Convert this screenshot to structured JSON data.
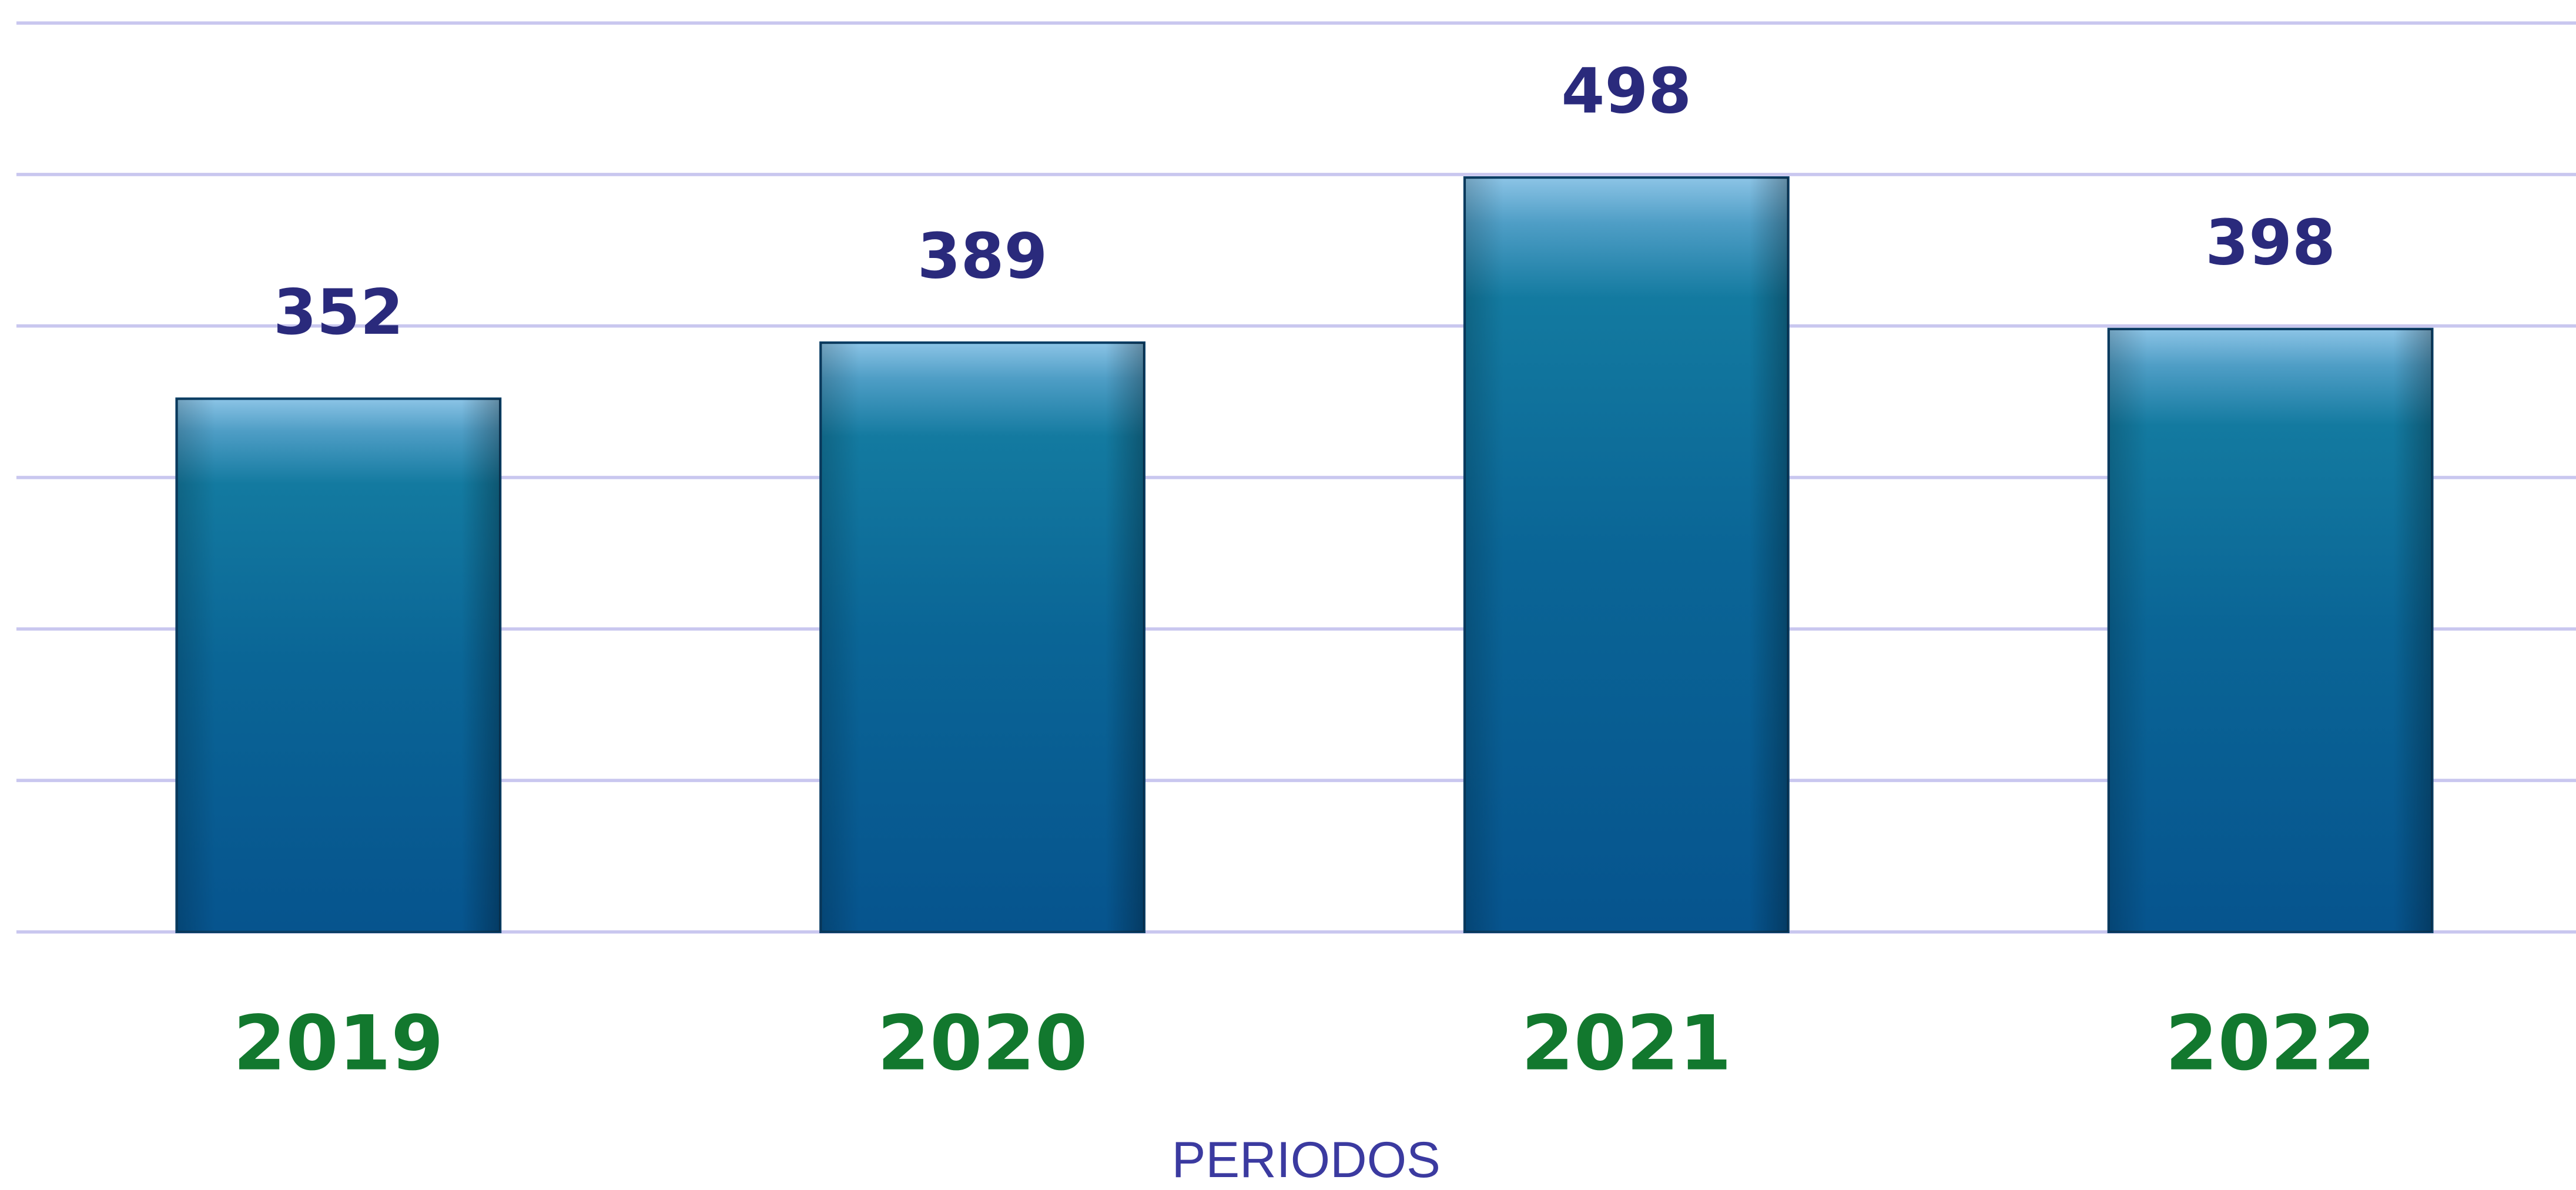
{
  "chart_data": {
    "type": "bar",
    "x_label": "PERIODOS",
    "categories": [
      "2019",
      "2020",
      "2021",
      "2022"
    ],
    "values": [
      352,
      389,
      498,
      398
    ],
    "color": "#0a5a8c",
    "ylim": [
      0,
      600
    ],
    "yticks": [
      0,
      100,
      200,
      300,
      400,
      500,
      600
    ],
    "grid": true
  }
}
